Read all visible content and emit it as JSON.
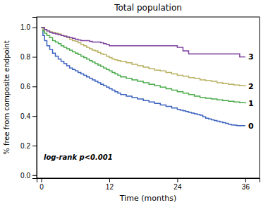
{
  "chart_data": {
    "type": "step",
    "title": "Total population",
    "x_label": "Time (months)",
    "y_label": "% free from composite endpoint",
    "xlim": [
      -0.8,
      38.5
    ],
    "ylim": [
      -0.02,
      1.07
    ],
    "xticks": [
      0,
      12,
      24,
      36
    ],
    "yticks": [
      {
        "value": 0.0,
        "label": "0.0"
      },
      0.2,
      0.4,
      0.6,
      0.8,
      {
        "value": 1.0,
        "label": "1.0"
      }
    ],
    "grid": false,
    "annotation": "log-rank p<0.001",
    "series": [
      {
        "name": "0",
        "color": "#3b62be",
        "x": [
          0,
          0.3,
          0.6,
          1.0,
          1.5,
          2.0,
          2.5,
          3.0,
          3.5,
          4.0,
          4.5,
          5.0,
          5.5,
          6.0,
          6.5,
          7.0,
          7.5,
          8.0,
          8.5,
          9.0,
          9.5,
          10.0,
          10.5,
          11.0,
          11.5,
          12.0,
          12.5,
          13.0,
          13.5,
          14.0,
          15.0,
          16.0,
          17.0,
          18.0,
          19.0,
          20.0,
          21.0,
          22.0,
          23.0,
          24.0,
          24.5,
          25.0,
          25.5,
          26.0,
          26.5,
          27.0,
          27.5,
          28.0,
          28.5,
          29.0,
          29.5,
          30.0,
          30.5,
          31.0,
          31.5,
          32.0,
          32.5,
          33.0,
          33.5,
          34.0,
          34.5,
          35.0,
          35.5,
          36.0
        ],
        "values": [
          1.0,
          0.945,
          0.91,
          0.875,
          0.85,
          0.825,
          0.805,
          0.785,
          0.77,
          0.755,
          0.74,
          0.725,
          0.715,
          0.705,
          0.695,
          0.685,
          0.675,
          0.665,
          0.655,
          0.645,
          0.635,
          0.625,
          0.615,
          0.605,
          0.595,
          0.585,
          0.575,
          0.565,
          0.555,
          0.545,
          0.535,
          0.525,
          0.515,
          0.505,
          0.495,
          0.485,
          0.475,
          0.465,
          0.455,
          0.445,
          0.44,
          0.435,
          0.43,
          0.425,
          0.42,
          0.415,
          0.41,
          0.405,
          0.395,
          0.385,
          0.38,
          0.375,
          0.37,
          0.365,
          0.36,
          0.355,
          0.35,
          0.345,
          0.34,
          0.338,
          0.335,
          0.335,
          0.335,
          0.335
        ]
      },
      {
        "name": "1",
        "color": "#4aaa4a",
        "x": [
          0,
          0.3,
          0.6,
          1.0,
          1.5,
          2.0,
          2.5,
          3.0,
          3.5,
          4.0,
          4.5,
          5.0,
          5.5,
          6.0,
          6.5,
          7.0,
          7.5,
          8.0,
          8.5,
          9.0,
          9.5,
          10.0,
          10.5,
          11.0,
          11.5,
          12.0,
          12.5,
          13.0,
          13.5,
          14.0,
          15.0,
          16.0,
          17.0,
          18.0,
          19.0,
          20.0,
          21.0,
          22.0,
          23.0,
          24.0,
          25.0,
          26.0,
          27.0,
          28.0,
          29.0,
          30.0,
          31.0,
          32.0,
          33.0,
          34.0,
          35.0,
          36.0
        ],
        "values": [
          1.0,
          0.975,
          0.96,
          0.945,
          0.93,
          0.91,
          0.9,
          0.89,
          0.875,
          0.865,
          0.855,
          0.845,
          0.835,
          0.825,
          0.815,
          0.805,
          0.795,
          0.785,
          0.775,
          0.765,
          0.755,
          0.745,
          0.735,
          0.725,
          0.715,
          0.705,
          0.695,
          0.685,
          0.675,
          0.665,
          0.655,
          0.645,
          0.635,
          0.625,
          0.615,
          0.605,
          0.595,
          0.585,
          0.575,
          0.565,
          0.555,
          0.545,
          0.535,
          0.525,
          0.52,
          0.515,
          0.51,
          0.505,
          0.5,
          0.495,
          0.49,
          0.485
        ]
      },
      {
        "name": "2",
        "color": "#b8b060",
        "x": [
          0,
          0.3,
          0.6,
          1.0,
          1.5,
          2.0,
          2.5,
          3.0,
          3.5,
          4.0,
          4.5,
          5.0,
          5.5,
          6.0,
          6.5,
          7.0,
          7.5,
          8.0,
          8.5,
          9.0,
          9.5,
          10.0,
          10.5,
          11.0,
          11.5,
          12.0,
          12.5,
          13.0,
          13.5,
          14.0,
          15.0,
          16.0,
          17.0,
          18.0,
          19.0,
          20.0,
          21.0,
          22.0,
          23.0,
          24.0,
          25.0,
          26.0,
          27.0,
          28.0,
          29.0,
          30.0,
          31.0,
          32.0,
          33.0,
          34.0,
          35.0,
          36.0
        ],
        "values": [
          1.0,
          0.99,
          0.985,
          0.975,
          0.97,
          0.965,
          0.96,
          0.955,
          0.945,
          0.94,
          0.93,
          0.92,
          0.91,
          0.905,
          0.895,
          0.885,
          0.875,
          0.865,
          0.855,
          0.845,
          0.84,
          0.83,
          0.82,
          0.815,
          0.805,
          0.795,
          0.785,
          0.78,
          0.775,
          0.77,
          0.76,
          0.75,
          0.74,
          0.73,
          0.72,
          0.71,
          0.705,
          0.695,
          0.685,
          0.675,
          0.67,
          0.66,
          0.655,
          0.645,
          0.64,
          0.635,
          0.625,
          0.62,
          0.615,
          0.61,
          0.605,
          0.6
        ]
      },
      {
        "name": "3",
        "color": "#7b3f9e",
        "x": [
          0,
          0.3,
          0.6,
          1.0,
          1.5,
          2.0,
          2.5,
          3.0,
          3.5,
          4.0,
          4.5,
          5.0,
          5.5,
          6.0,
          6.5,
          7.0,
          7.5,
          8.0,
          8.5,
          9.0,
          9.5,
          10.0,
          10.5,
          11.0,
          11.5,
          12.0,
          13.0,
          14.0,
          15.0,
          16.0,
          17.0,
          18.0,
          19.0,
          20.0,
          21.0,
          22.0,
          23.0,
          24.0,
          25.0,
          26.0,
          27.0,
          28.0,
          29.0,
          30.0,
          31.0,
          32.0,
          33.0,
          34.0,
          35.0,
          36.0
        ],
        "values": [
          1.0,
          1.0,
          0.985,
          0.975,
          0.965,
          0.96,
          0.955,
          0.95,
          0.945,
          0.94,
          0.935,
          0.93,
          0.925,
          0.92,
          0.915,
          0.91,
          0.91,
          0.91,
          0.905,
          0.9,
          0.9,
          0.9,
          0.895,
          0.89,
          0.885,
          0.875,
          0.875,
          0.875,
          0.875,
          0.875,
          0.875,
          0.875,
          0.875,
          0.875,
          0.875,
          0.875,
          0.875,
          0.865,
          0.84,
          0.82,
          0.82,
          0.82,
          0.82,
          0.82,
          0.82,
          0.82,
          0.82,
          0.82,
          0.8,
          0.8
        ]
      }
    ]
  }
}
